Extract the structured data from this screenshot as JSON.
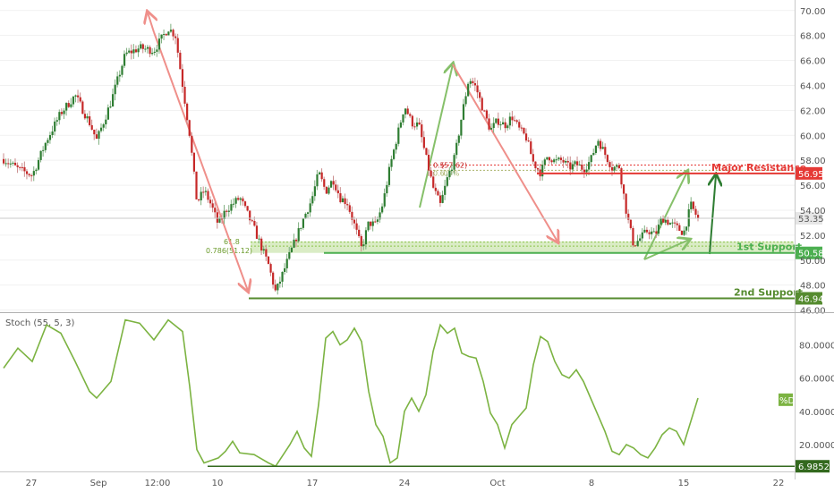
{
  "chart_data": [
    {
      "type": "candlestick",
      "panel": "price",
      "x_ticks": [
        "27",
        "Sep",
        "12:00",
        "10",
        "17",
        "24",
        "Oct",
        "8",
        "15",
        "22"
      ],
      "y_ticks": [
        {
          "label": "70.00",
          "value": 70
        },
        {
          "label": "68.00",
          "value": 68
        },
        {
          "label": "66.00",
          "value": 66
        },
        {
          "label": "64.00",
          "value": 64
        },
        {
          "label": "62.00",
          "value": 62
        },
        {
          "label": "60.00",
          "value": 60
        },
        {
          "label": "58.00",
          "value": 58
        },
        {
          "label": "56.00",
          "value": 56
        },
        {
          "label": "54.00",
          "value": 54
        },
        {
          "label": "52.00",
          "value": 52
        },
        {
          "label": "50.00",
          "value": 50
        },
        {
          "label": "48.00",
          "value": 48
        },
        {
          "label": "46.00",
          "value": 46
        }
      ],
      "ylim": [
        45.9,
        70.7
      ],
      "last_price": {
        "label": "53.35",
        "value": 53.35
      },
      "levels": [
        {
          "name": "Major Resistance",
          "value": 56.95,
          "label": "56.95",
          "color": "#e53935"
        },
        {
          "name": "1st Support",
          "value": 50.58,
          "label": "50.58",
          "color": "#4caf50"
        },
        {
          "name": "2nd Support",
          "value": 46.94,
          "label": "46.94",
          "color": "#558b2f"
        }
      ],
      "fib_labels": {
        "resistance_a": "0.5",
        "resistance_b": "(57.62)",
        "resistance_c": "0.6",
        "resistance_d": ".09%",
        "support_a": "61.8",
        "support_b": "0.786(51.12)"
      },
      "price_path": [
        [
          0,
          58.1
        ],
        [
          2,
          57.3
        ],
        [
          4,
          56.8
        ],
        [
          6,
          59.6
        ],
        [
          8,
          61.8
        ],
        [
          10,
          63.2
        ],
        [
          12,
          61.0
        ],
        [
          13,
          59.6
        ],
        [
          15,
          62.7
        ],
        [
          17,
          66.5
        ],
        [
          19,
          67.0
        ],
        [
          21,
          66.8
        ],
        [
          23,
          68.6
        ],
        [
          24,
          68.0
        ],
        [
          26,
          60.0
        ],
        [
          27,
          54.6
        ],
        [
          28,
          55.6
        ],
        [
          29,
          54.4
        ],
        [
          30,
          52.8
        ],
        [
          31,
          54.0
        ],
        [
          33,
          55.0
        ],
        [
          35,
          52.5
        ],
        [
          37,
          49.6
        ],
        [
          38,
          47.4
        ],
        [
          40,
          50.5
        ],
        [
          42,
          53.5
        ],
        [
          43,
          54.8
        ],
        [
          44,
          57.0
        ],
        [
          45,
          55.5
        ],
        [
          46,
          56.5
        ],
        [
          47,
          55.0
        ],
        [
          48,
          54.6
        ],
        [
          49,
          52.8
        ],
        [
          50,
          50.9
        ],
        [
          51,
          53.0
        ],
        [
          52,
          52.8
        ],
        [
          53,
          54.6
        ],
        [
          54,
          57.6
        ],
        [
          55,
          60.0
        ],
        [
          56,
          62.4
        ],
        [
          57,
          61.0
        ],
        [
          58,
          60.8
        ],
        [
          59,
          58.2
        ],
        [
          60,
          55.8
        ],
        [
          61,
          54.4
        ],
        [
          62,
          56.6
        ],
        [
          63,
          58.2
        ],
        [
          64,
          61.6
        ],
        [
          65,
          64.6
        ],
        [
          66,
          63.8
        ],
        [
          67,
          62.0
        ],
        [
          68,
          60.4
        ],
        [
          69,
          61.2
        ],
        [
          70,
          60.8
        ],
        [
          71,
          61.5
        ],
        [
          72,
          60.5
        ],
        [
          73,
          59.8
        ],
        [
          74,
          57.8
        ],
        [
          75,
          57.0
        ],
        [
          76,
          58.4
        ],
        [
          77,
          57.9
        ],
        [
          78,
          58.0
        ],
        [
          79,
          57.4
        ],
        [
          80,
          57.7
        ],
        [
          81,
          57.3
        ],
        [
          82,
          58.0
        ],
        [
          83,
          59.7
        ],
        [
          84,
          58.5
        ],
        [
          85,
          57.4
        ],
        [
          86,
          57.5
        ],
        [
          87,
          53.8
        ],
        [
          88,
          51.2
        ],
        [
          89,
          51.8
        ],
        [
          90,
          52.4
        ],
        [
          91,
          52.0
        ],
        [
          92,
          53.4
        ],
        [
          93,
          53.0
        ],
        [
          94,
          52.6
        ],
        [
          95,
          52.2
        ],
        [
          96,
          54.4
        ],
        [
          97,
          53.3
        ]
      ]
    },
    {
      "type": "line",
      "panel": "oscillator",
      "indicator_label": "Stoch (55, 5, 3)",
      "series_badge": "%D",
      "y_ticks": [
        {
          "label": "80.0000",
          "value": 80
        },
        {
          "label": "60.0000",
          "value": 60
        },
        {
          "label": "40.0000",
          "value": 40
        },
        {
          "label": "20.0000",
          "value": 20
        }
      ],
      "ylim": [
        5.5,
        98
      ],
      "last_value": 47,
      "level": {
        "value": 6.9852,
        "label": "6.9852"
      },
      "values": [
        [
          0,
          66
        ],
        [
          2,
          78
        ],
        [
          4,
          70
        ],
        [
          6,
          92
        ],
        [
          8,
          87
        ],
        [
          10,
          70
        ],
        [
          12,
          52
        ],
        [
          13,
          48
        ],
        [
          15,
          58
        ],
        [
          17,
          95
        ],
        [
          19,
          93
        ],
        [
          21,
          83
        ],
        [
          23,
          95
        ],
        [
          25,
          88
        ],
        [
          26,
          55
        ],
        [
          27,
          17
        ],
        [
          28,
          9
        ],
        [
          30,
          12
        ],
        [
          31,
          16
        ],
        [
          32,
          22
        ],
        [
          33,
          15
        ],
        [
          35,
          14
        ],
        [
          37,
          9
        ],
        [
          38,
          7
        ],
        [
          40,
          20
        ],
        [
          41,
          28
        ],
        [
          42,
          18
        ],
        [
          43,
          13
        ],
        [
          44,
          44
        ],
        [
          45,
          84
        ],
        [
          46,
          88
        ],
        [
          47,
          80
        ],
        [
          48,
          83
        ],
        [
          49,
          90
        ],
        [
          50,
          82
        ],
        [
          51,
          52
        ],
        [
          52,
          32
        ],
        [
          53,
          25
        ],
        [
          54,
          9
        ],
        [
          55,
          12
        ],
        [
          56,
          40
        ],
        [
          57,
          48
        ],
        [
          58,
          40
        ],
        [
          59,
          50
        ],
        [
          60,
          76
        ],
        [
          61,
          92
        ],
        [
          62,
          87
        ],
        [
          63,
          90
        ],
        [
          64,
          75
        ],
        [
          65,
          73
        ],
        [
          66,
          72
        ],
        [
          67,
          58
        ],
        [
          68,
          39
        ],
        [
          69,
          32
        ],
        [
          70,
          18
        ],
        [
          71,
          32
        ],
        [
          72,
          37
        ],
        [
          73,
          42
        ],
        [
          74,
          68
        ],
        [
          75,
          85
        ],
        [
          76,
          82
        ],
        [
          77,
          70
        ],
        [
          78,
          62
        ],
        [
          79,
          60
        ],
        [
          80,
          65
        ],
        [
          81,
          58
        ],
        [
          82,
          48
        ],
        [
          83,
          38
        ],
        [
          84,
          28
        ],
        [
          85,
          16
        ],
        [
          86,
          14
        ],
        [
          87,
          20
        ],
        [
          88,
          18
        ],
        [
          89,
          14
        ],
        [
          90,
          12
        ],
        [
          91,
          18
        ],
        [
          92,
          26
        ],
        [
          93,
          30
        ],
        [
          94,
          28
        ],
        [
          95,
          20
        ],
        [
          96,
          34
        ],
        [
          97,
          48
        ]
      ]
    }
  ]
}
